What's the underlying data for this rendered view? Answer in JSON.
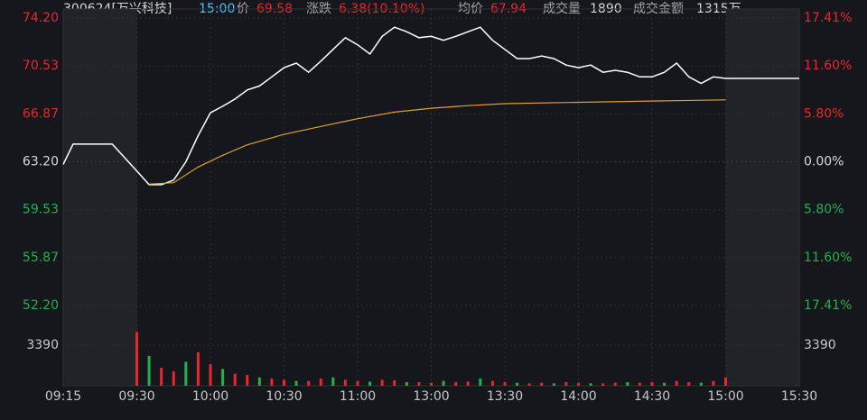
{
  "header": {
    "items": [
      "300624[万兴科技]",
      "15:00",
      "价",
      "69.58",
      "涨跌",
      "6.38(10.10%)",
      "均价",
      "67.94",
      "成交量",
      "1890",
      "成交金额",
      "1315万"
    ]
  },
  "chart_data": [
    {
      "type": "line",
      "ylim": [
        52.2,
        74.2
      ],
      "yticks": [
        {
          "value": 74.2,
          "label": "74.20"
        },
        70.53,
        66.87,
        {
          "value": 63.2,
          "label": "63.20"
        },
        59.53,
        55.87,
        {
          "value": 52.2,
          "label": "52.20"
        }
      ],
      "y2lim": [
        -17.41,
        17.41
      ],
      "y2ticks": [
        {
          "value": 17.41,
          "label": "17.41%"
        },
        {
          "value": 11.6,
          "label": "11.60%"
        },
        {
          "value": 5.8,
          "label": "5.80%"
        },
        {
          "value": 0,
          "label": "0.00%"
        },
        {
          "value": -5.8,
          "label": "5.80%"
        },
        {
          "value": -11.6,
          "label": "11.60%"
        },
        {
          "value": -17.41,
          "label": "17.41%"
        }
      ],
      "xticks": [
        "09:15",
        "09:30",
        "10:00",
        "10:30",
        "11:00",
        "13:00",
        "13:30",
        "14:00",
        "14:30",
        "15:00",
        "15:30"
      ],
      "grid": true,
      "series": [
        {
          "name": "价",
          "color": "#ffffff",
          "x": [
            "09:15",
            "09:17",
            "09:25",
            "09:30",
            "09:35",
            "09:40",
            "09:45",
            "09:50",
            "09:55",
            "10:00",
            "10:05",
            "10:10",
            "10:15",
            "10:20",
            "10:25",
            "10:30",
            "10:35",
            "10:40",
            "10:45",
            "10:50",
            "10:55",
            "11:00",
            "11:05",
            "11:10",
            "11:15",
            "11:20",
            "11:25",
            "11:30",
            "13:05",
            "13:10",
            "13:15",
            "13:20",
            "13:25",
            "13:30",
            "13:35",
            "13:40",
            "13:45",
            "13:50",
            "13:55",
            "14:00",
            "14:05",
            "14:10",
            "14:15",
            "14:20",
            "14:25",
            "14:30",
            "14:35",
            "14:40",
            "14:45",
            "14:50",
            "14:55",
            "15:00",
            "15:30"
          ],
          "values": [
            63.0,
            64.55,
            64.55,
            62.5,
            61.45,
            61.45,
            61.8,
            63.2,
            65.2,
            66.95,
            67.45,
            68.0,
            68.7,
            69.0,
            69.7,
            70.4,
            70.75,
            70.05,
            70.9,
            71.8,
            72.7,
            72.15,
            71.45,
            72.8,
            73.5,
            73.15,
            72.7,
            72.8,
            72.5,
            72.8,
            73.15,
            73.5,
            72.5,
            71.8,
            71.1,
            71.1,
            71.3,
            71.1,
            70.6,
            70.4,
            70.6,
            70.05,
            70.2,
            70.05,
            69.7,
            69.7,
            70.05,
            70.75,
            69.7,
            69.2,
            69.7,
            69.58,
            69.58
          ]
        },
        {
          "name": "均价",
          "color": "#e0a030",
          "x": [
            "09:35",
            "09:45",
            "09:55",
            "10:05",
            "10:15",
            "10:30",
            "10:45",
            "11:00",
            "11:15",
            "11:30",
            "13:15",
            "13:30",
            "14:00",
            "14:30",
            "15:00"
          ],
          "values": [
            61.5,
            61.6,
            62.8,
            63.7,
            64.5,
            65.3,
            65.9,
            66.5,
            67.0,
            67.3,
            67.5,
            67.65,
            67.75,
            67.85,
            67.94
          ]
        }
      ]
    },
    {
      "type": "bar",
      "ylim": [
        0,
        6250
      ],
      "yticks": [
        3390
      ],
      "up_color": "#e8262e",
      "down_color": "#22b14c",
      "x": [
        "09:30",
        "09:35",
        "09:40",
        "09:45",
        "09:50",
        "09:55",
        "10:00",
        "10:05",
        "10:10",
        "10:15",
        "10:20",
        "10:25",
        "10:30",
        "10:35",
        "10:40",
        "10:45",
        "10:50",
        "10:55",
        "11:00",
        "11:05",
        "11:10",
        "11:15",
        "11:20",
        "11:25",
        "11:30",
        "13:05",
        "13:10",
        "13:15",
        "13:20",
        "13:25",
        "13:30",
        "13:35",
        "13:40",
        "13:45",
        "13:50",
        "13:55",
        "14:00",
        "14:05",
        "14:10",
        "14:15",
        "14:20",
        "14:25",
        "14:30",
        "14:35",
        "14:40",
        "14:45",
        "14:50",
        "14:55",
        "15:00"
      ],
      "values": [
        4500,
        2500,
        1500,
        1200,
        2000,
        2800,
        1800,
        1400,
        1000,
        900,
        700,
        600,
        500,
        400,
        400,
        600,
        700,
        500,
        400,
        350,
        500,
        450,
        300,
        300,
        250,
        400,
        300,
        350,
        600,
        400,
        300,
        250,
        200,
        250,
        200,
        300,
        250,
        200,
        200,
        250,
        300,
        250,
        300,
        250,
        400,
        300,
        250,
        400,
        700
      ]
    }
  ]
}
